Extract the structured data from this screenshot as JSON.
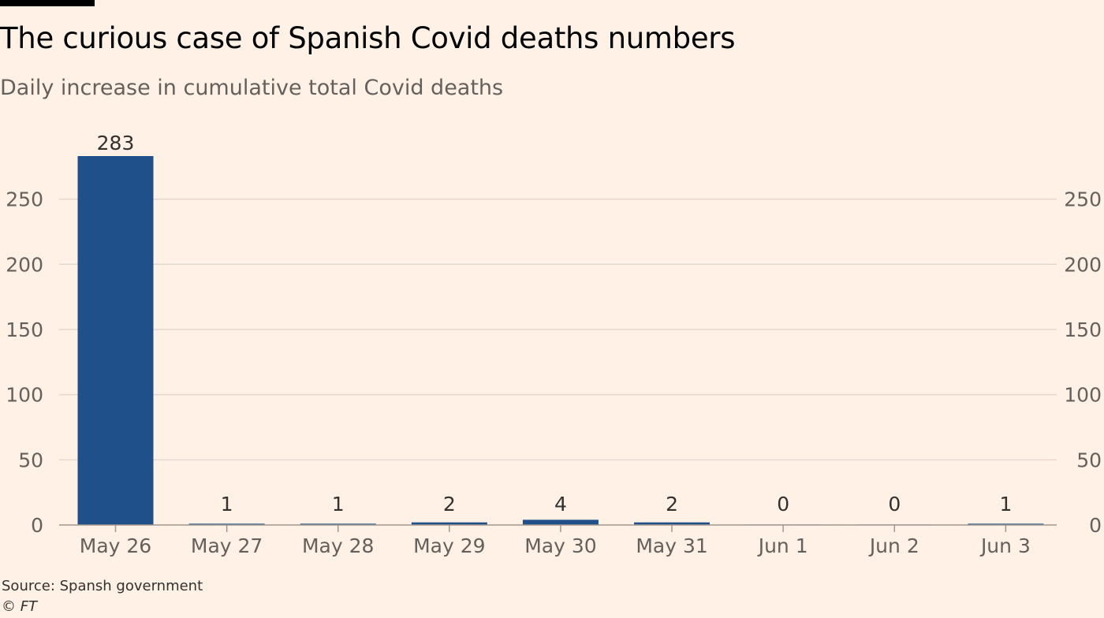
{
  "header": {
    "title": "The curious case of Spanish Covid deaths numbers",
    "subtitle": "Daily increase in cumulative total Covid deaths"
  },
  "footer": {
    "source": "Source: Spansh government",
    "credit": "© FT"
  },
  "colors": {
    "bar": "#1f5089",
    "bar_faint": "#d9cfc6",
    "grid": "#e3d9d0",
    "axis": "#a09890",
    "background": "#fff1e5"
  },
  "chart_data": {
    "type": "bar",
    "title": "The curious case of Spanish Covid deaths numbers",
    "subtitle": "Daily increase in cumulative total Covid deaths",
    "xlabel": "",
    "ylabel": "",
    "categories": [
      "May 26",
      "May 27",
      "May 28",
      "May 29",
      "May 30",
      "May 31",
      "Jun 1",
      "Jun 2",
      "Jun 3"
    ],
    "values": [
      283,
      1,
      1,
      2,
      4,
      2,
      0,
      0,
      1
    ],
    "ylim": [
      0,
      283
    ],
    "yticks": [
      0,
      50,
      100,
      150,
      200,
      250
    ],
    "grid": true,
    "y_axis_sides": "both"
  }
}
